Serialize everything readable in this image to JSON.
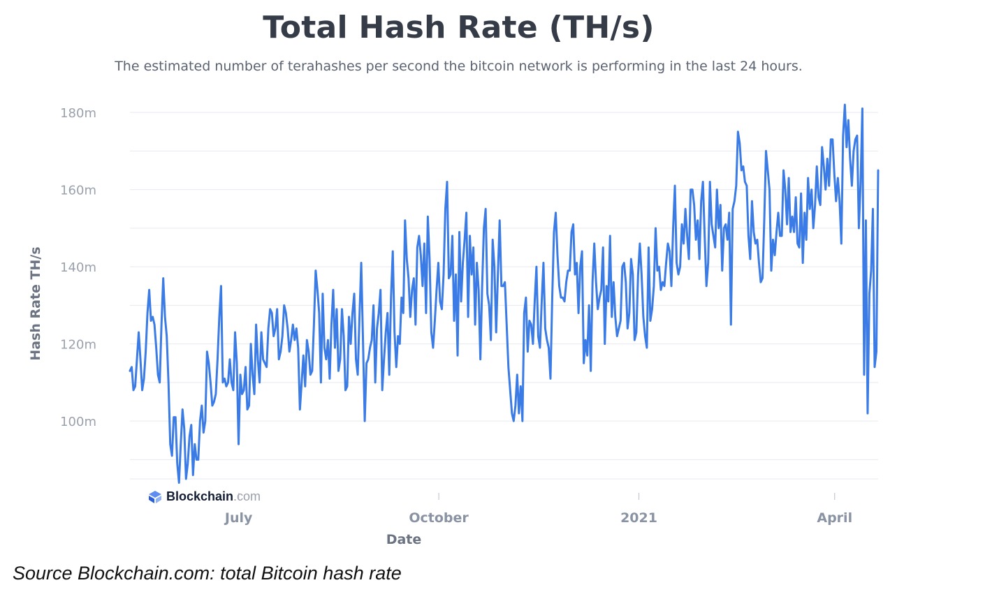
{
  "chart_data": {
    "type": "line",
    "title": "Total Hash Rate (TH/s)",
    "subtitle": "The estimated number of terahashes per second the bitcoin network is performing in the last 24 hours.",
    "xlabel": "Date",
    "ylabel": "Hash Rate TH/s",
    "x_ticks": [
      "July",
      "October",
      "2021",
      "April"
    ],
    "y_ticks": [
      "100m",
      "120m",
      "140m",
      "160m",
      "180m"
    ],
    "ylim": [
      85,
      182
    ],
    "x_range": [
      "2020-05-12",
      "2021-04-21"
    ],
    "grid": true,
    "line_color": "#3a7be6",
    "series": [
      {
        "values": [
          113,
          114,
          108,
          109,
          116,
          123,
          116,
          108,
          111,
          118,
          128,
          134,
          126,
          127,
          125,
          119,
          112,
          110,
          125,
          137,
          127,
          122,
          110,
          94,
          91,
          101,
          101,
          89,
          84,
          94,
          103,
          98,
          85,
          89,
          96,
          99,
          86,
          94,
          90,
          90,
          100,
          104,
          97,
          100,
          118,
          115,
          110,
          104,
          105,
          107,
          116,
          127,
          135,
          110,
          111,
          109,
          110,
          116,
          110,
          108,
          123,
          115,
          94,
          112,
          107,
          108,
          114,
          103,
          104,
          120,
          112,
          107,
          125,
          116,
          110,
          123,
          116,
          115,
          114,
          124,
          129,
          128,
          122,
          124,
          129,
          116,
          118,
          122,
          130,
          128,
          124,
          118,
          121,
          125,
          121,
          124,
          119,
          103,
          110,
          117,
          109,
          121,
          118,
          112,
          113,
          125,
          139,
          134,
          128,
          110,
          133,
          119,
          116,
          121,
          111,
          125,
          134,
          119,
          129,
          113,
          116,
          129,
          122,
          108,
          109,
          127,
          120,
          128,
          133,
          116,
          112,
          127,
          141,
          121,
          100,
          115,
          116,
          119,
          121,
          130,
          110,
          124,
          128,
          134,
          108,
          116,
          123,
          128,
          112,
          132,
          144,
          123,
          114,
          122,
          120,
          132,
          128,
          152,
          142,
          137,
          127,
          134,
          137,
          125,
          145,
          148,
          143,
          135,
          146,
          128,
          153,
          142,
          123,
          119,
          126,
          134,
          141,
          131,
          129,
          138,
          155,
          162,
          137,
          138,
          148,
          126,
          138,
          117,
          149,
          131,
          141,
          147,
          154,
          127,
          148,
          138,
          145,
          125,
          141,
          134,
          116,
          135,
          150,
          155,
          133,
          130,
          121,
          147,
          140,
          123,
          138,
          152,
          135,
          135,
          136,
          125,
          114,
          108,
          102,
          100,
          104,
          112,
          102,
          109,
          100,
          128,
          132,
          118,
          126,
          125,
          120,
          131,
          140,
          122,
          119,
          131,
          141,
          124,
          121,
          119,
          111,
          132,
          149,
          154,
          143,
          135,
          132,
          132,
          131,
          136,
          139,
          139,
          149,
          151,
          138,
          141,
          128,
          140,
          144,
          115,
          121,
          117,
          130,
          113,
          136,
          146,
          136,
          129,
          132,
          134,
          145,
          120,
          135,
          131,
          148,
          127,
          136,
          127,
          122,
          124,
          126,
          140,
          141,
          136,
          124,
          128,
          142,
          138,
          121,
          123,
          138,
          146,
          138,
          127,
          122,
          119,
          145,
          126,
          129,
          135,
          150,
          139,
          140,
          134,
          136,
          135,
          141,
          146,
          144,
          135,
          150,
          161,
          141,
          138,
          140,
          151,
          146,
          155,
          148,
          142,
          160,
          160,
          156,
          147,
          152,
          142,
          157,
          162,
          148,
          135,
          141,
          162,
          151,
          148,
          145,
          160,
          150,
          156,
          139,
          150,
          151,
          147,
          154,
          125,
          155,
          157,
          161,
          175,
          172,
          165,
          166,
          162,
          161,
          148,
          142,
          157,
          149,
          146,
          147,
          141,
          136,
          137,
          152,
          170,
          165,
          160,
          139,
          147,
          143,
          149,
          154,
          148,
          148,
          165,
          160,
          151,
          163,
          149,
          153,
          149,
          158,
          146,
          145,
          159,
          141,
          154,
          147,
          163,
          155,
          160,
          150,
          156,
          166,
          158,
          156,
          171,
          166,
          160,
          168,
          161,
          173,
          173,
          164,
          157,
          163,
          157,
          146,
          174,
          182,
          171,
          178,
          168,
          161,
          170,
          173,
          174,
          150,
          162,
          181,
          112,
          152,
          102,
          133,
          139,
          155,
          114,
          118,
          165
        ]
      }
    ]
  },
  "caption": "Source Blockchain.com: total Bitcoin hash rate",
  "watermark": {
    "brand": "Blockchain",
    "domain": ".com"
  }
}
